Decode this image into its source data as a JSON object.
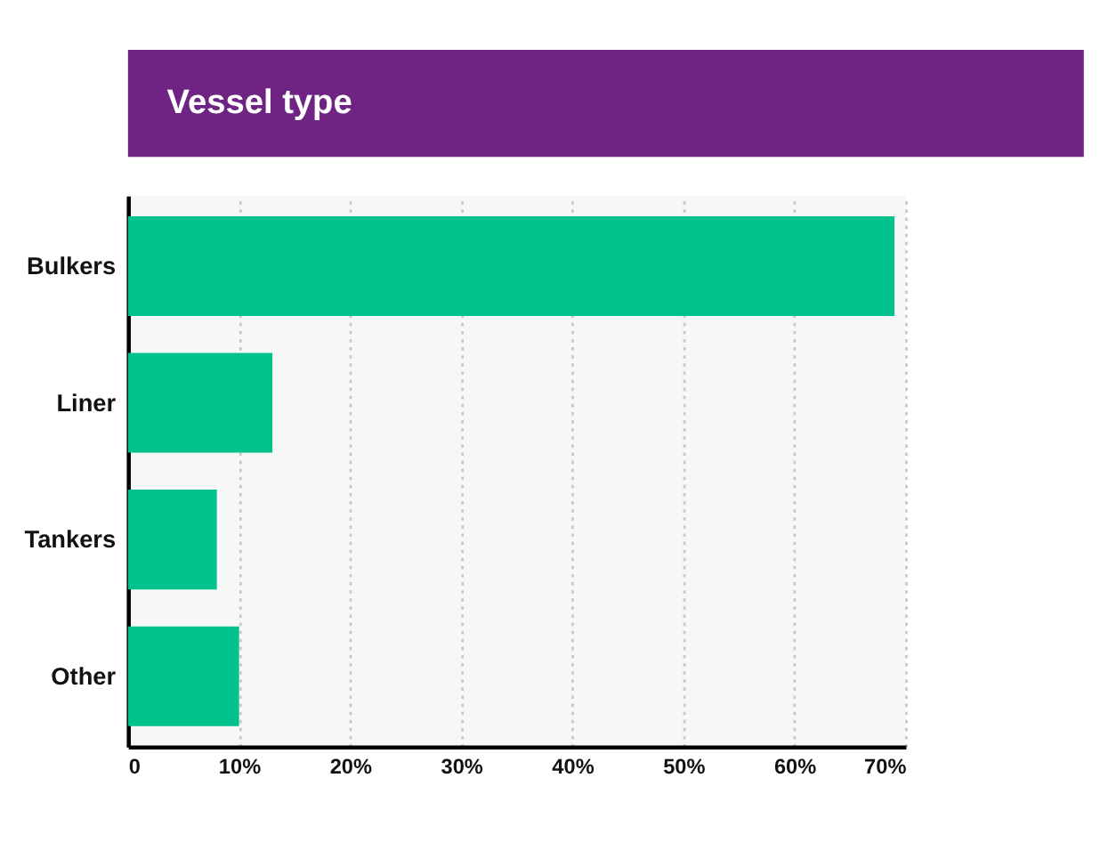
{
  "chart_data": {
    "type": "bar",
    "orientation": "horizontal",
    "title": "Vessel type",
    "categories": [
      "Bulkers",
      "Liner",
      "Tankers",
      "Other"
    ],
    "values": [
      69,
      13,
      8,
      10
    ],
    "color": "#00c28c",
    "xlim": [
      0,
      70
    ],
    "xticks": [
      {
        "value": 0,
        "label": "0"
      },
      {
        "value": 10,
        "label": "10%"
      },
      {
        "value": 20,
        "label": "20%"
      },
      {
        "value": 30,
        "label": "30%"
      },
      {
        "value": 40,
        "label": "40%"
      },
      {
        "value": 50,
        "label": "50%"
      },
      {
        "value": 60,
        "label": "60%"
      },
      {
        "value": 70,
        "label": "70%"
      }
    ],
    "grid": "x"
  }
}
